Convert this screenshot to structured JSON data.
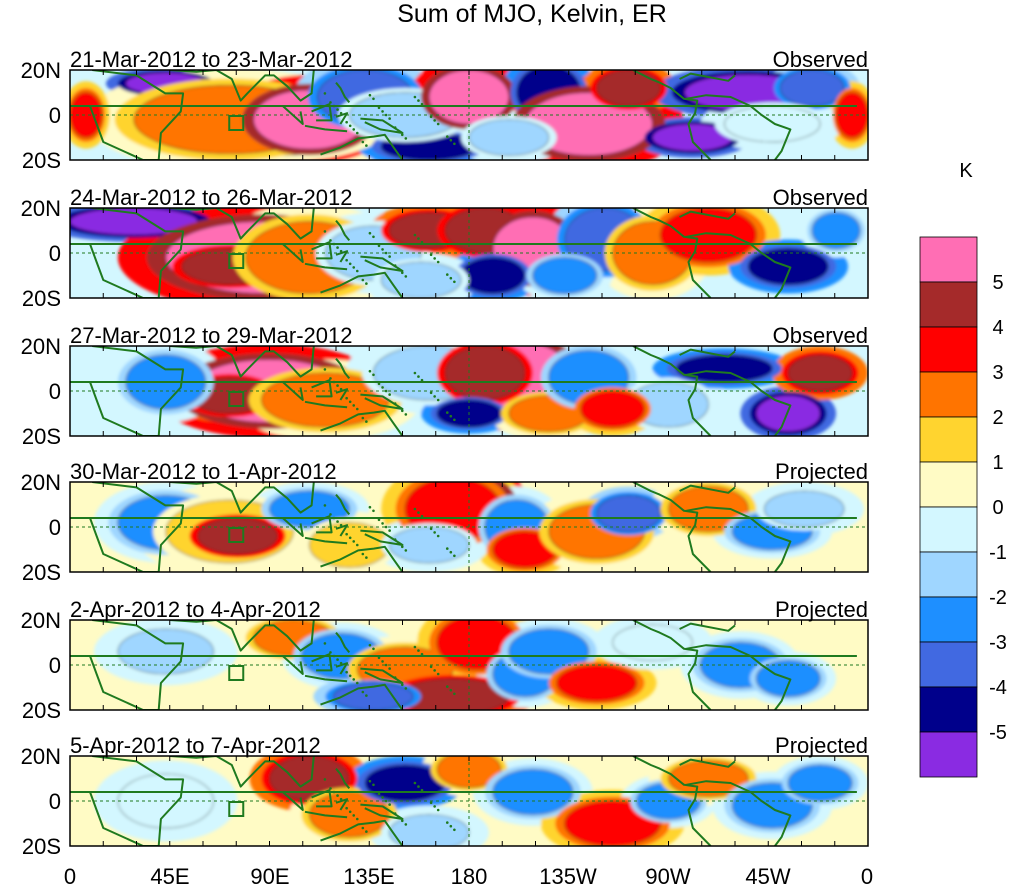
{
  "title": "Sum of MJO, Kelvin, ER",
  "panels": [
    {
      "date_range": "21-Mar-2012 to 23-Mar-2012",
      "status": "Observed"
    },
    {
      "date_range": "24-Mar-2012 to 26-Mar-2012",
      "status": "Observed"
    },
    {
      "date_range": "27-Mar-2012 to 29-Mar-2012",
      "status": "Observed"
    },
    {
      "date_range": "30-Mar-2012 to 1-Apr-2012",
      "status": "Projected"
    },
    {
      "date_range": "2-Apr-2012 to 4-Apr-2012",
      "status": "Projected"
    },
    {
      "date_range": "5-Apr-2012 to 7-Apr-2012",
      "status": "Projected"
    }
  ],
  "y_ticks": [
    "20N",
    "0",
    "20S"
  ],
  "x_ticks": [
    "0",
    "45E",
    "90E",
    "135E",
    "180",
    "135W",
    "90W",
    "45W",
    "0"
  ],
  "colorbar": {
    "unit": "K",
    "labels": [
      "5",
      "4",
      "3",
      "2",
      "1",
      "0",
      "-1",
      "-2",
      "-3",
      "-4",
      "-5"
    ],
    "colors": [
      "#ff6eb4",
      "#a52a2a",
      "#ff0000",
      "#ff7400",
      "#ffd42f",
      "#fffbc5",
      "#d3f7ff",
      "#9fd6ff",
      "#1e8fff",
      "#4169e1",
      "#00008b",
      "#8a2be2"
    ]
  },
  "colors": {
    "coastline": "#1f7a1f",
    "equator": "#1f7a1f"
  }
}
